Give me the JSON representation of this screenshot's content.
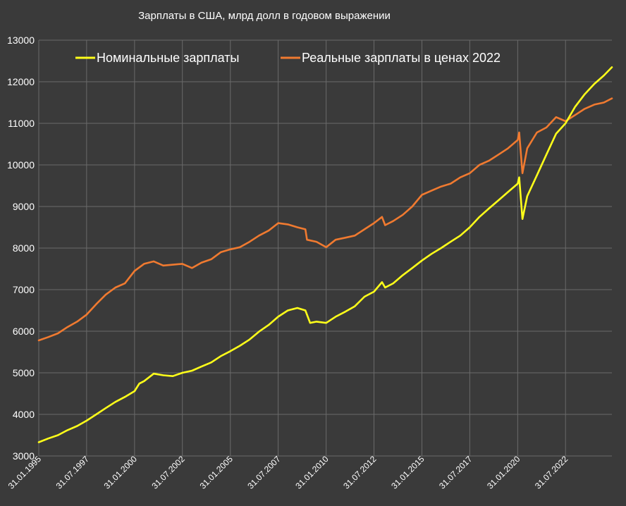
{
  "chart_data": {
    "type": "line",
    "title": "Зарплаты в США, млрд долл в годовом выражении",
    "xlabel": "",
    "ylabel": "",
    "ylim": [
      3000,
      13000
    ],
    "yticks": [
      "3000",
      "4000",
      "5000",
      "6000",
      "7000",
      "8000",
      "9000",
      "10000",
      "11000",
      "12000",
      "13000"
    ],
    "xlim": [
      "1995-01-31",
      "2024-12-31"
    ],
    "xticks": [
      {
        "date": "1995-01-31",
        "label": "31.01.1995"
      },
      {
        "date": "1997-07-31",
        "label": "31.07.1997"
      },
      {
        "date": "2000-01-31",
        "label": "31.01.2000"
      },
      {
        "date": "2002-07-31",
        "label": "31.07.2002"
      },
      {
        "date": "2005-01-31",
        "label": "31.01.2005"
      },
      {
        "date": "2007-07-31",
        "label": "31.07.2007"
      },
      {
        "date": "2010-01-31",
        "label": "31.01.2010"
      },
      {
        "date": "2012-07-31",
        "label": "31.07.2012"
      },
      {
        "date": "2015-01-31",
        "label": "31.01.2015"
      },
      {
        "date": "2017-07-31",
        "label": "31.07.2017"
      },
      {
        "date": "2020-01-31",
        "label": "31.01.2020"
      },
      {
        "date": "2022-07-31",
        "label": "31.07.2022"
      }
    ],
    "grid": true,
    "legend_position": "top-left",
    "series": [
      {
        "name": "Номинальные зарплаты",
        "color": "#ffff1a",
        "points": [
          [
            "1995-01-31",
            3330
          ],
          [
            "1995-07-31",
            3420
          ],
          [
            "1996-01-31",
            3500
          ],
          [
            "1996-07-31",
            3620
          ],
          [
            "1997-01-31",
            3720
          ],
          [
            "1997-07-31",
            3850
          ],
          [
            "1998-01-31",
            4000
          ],
          [
            "1998-07-31",
            4150
          ],
          [
            "1999-01-31",
            4300
          ],
          [
            "1999-07-31",
            4420
          ],
          [
            "2000-01-31",
            4560
          ],
          [
            "2000-04-30",
            4740
          ],
          [
            "2000-07-31",
            4800
          ],
          [
            "2001-01-31",
            4980
          ],
          [
            "2001-07-31",
            4940
          ],
          [
            "2002-01-31",
            4920
          ],
          [
            "2002-07-31",
            5000
          ],
          [
            "2003-01-31",
            5050
          ],
          [
            "2003-07-31",
            5150
          ],
          [
            "2004-01-31",
            5250
          ],
          [
            "2004-07-31",
            5400
          ],
          [
            "2005-01-31",
            5520
          ],
          [
            "2005-07-31",
            5650
          ],
          [
            "2006-01-31",
            5800
          ],
          [
            "2006-07-31",
            5990
          ],
          [
            "2007-01-31",
            6150
          ],
          [
            "2007-07-31",
            6350
          ],
          [
            "2008-01-31",
            6500
          ],
          [
            "2008-07-31",
            6560
          ],
          [
            "2008-12-31",
            6500
          ],
          [
            "2009-03-31",
            6200
          ],
          [
            "2009-07-31",
            6230
          ],
          [
            "2010-01-31",
            6200
          ],
          [
            "2010-07-31",
            6350
          ],
          [
            "2011-01-31",
            6470
          ],
          [
            "2011-07-31",
            6600
          ],
          [
            "2012-01-31",
            6830
          ],
          [
            "2012-07-31",
            6950
          ],
          [
            "2012-12-31",
            7180
          ],
          [
            "2013-02-28",
            7050
          ],
          [
            "2013-07-31",
            7150
          ],
          [
            "2014-01-31",
            7350
          ],
          [
            "2014-07-31",
            7520
          ],
          [
            "2015-01-31",
            7700
          ],
          [
            "2015-07-31",
            7860
          ],
          [
            "2016-01-31",
            8000
          ],
          [
            "2016-07-31",
            8150
          ],
          [
            "2017-01-31",
            8300
          ],
          [
            "2017-07-31",
            8500
          ],
          [
            "2018-01-31",
            8750
          ],
          [
            "2018-07-31",
            8950
          ],
          [
            "2019-01-31",
            9150
          ],
          [
            "2019-07-31",
            9350
          ],
          [
            "2020-01-31",
            9550
          ],
          [
            "2020-02-29",
            9700
          ],
          [
            "2020-04-30",
            8700
          ],
          [
            "2020-07-31",
            9250
          ],
          [
            "2021-01-31",
            9750
          ],
          [
            "2021-07-31",
            10250
          ],
          [
            "2022-01-31",
            10750
          ],
          [
            "2022-07-31",
            11000
          ],
          [
            "2023-01-31",
            11400
          ],
          [
            "2023-07-31",
            11700
          ],
          [
            "2024-01-31",
            11950
          ],
          [
            "2024-07-31",
            12150
          ],
          [
            "2024-12-31",
            12350
          ]
        ]
      },
      {
        "name": "Реальные зарплаты в ценах 2022",
        "color": "#f07a30",
        "points": [
          [
            "1995-01-31",
            5780
          ],
          [
            "1995-07-31",
            5860
          ],
          [
            "1996-01-31",
            5950
          ],
          [
            "1996-07-31",
            6100
          ],
          [
            "1997-01-31",
            6230
          ],
          [
            "1997-07-31",
            6400
          ],
          [
            "1998-01-31",
            6650
          ],
          [
            "1998-07-31",
            6880
          ],
          [
            "1999-01-31",
            7050
          ],
          [
            "1999-07-31",
            7150
          ],
          [
            "2000-01-31",
            7450
          ],
          [
            "2000-07-31",
            7620
          ],
          [
            "2001-01-31",
            7680
          ],
          [
            "2001-07-31",
            7580
          ],
          [
            "2002-01-31",
            7600
          ],
          [
            "2002-07-31",
            7620
          ],
          [
            "2003-01-31",
            7520
          ],
          [
            "2003-07-31",
            7650
          ],
          [
            "2004-01-31",
            7730
          ],
          [
            "2004-07-31",
            7900
          ],
          [
            "2005-01-31",
            7970
          ],
          [
            "2005-07-31",
            8020
          ],
          [
            "2006-01-31",
            8150
          ],
          [
            "2006-07-31",
            8300
          ],
          [
            "2007-01-31",
            8420
          ],
          [
            "2007-07-31",
            8600
          ],
          [
            "2008-01-31",
            8570
          ],
          [
            "2008-07-31",
            8500
          ],
          [
            "2008-12-31",
            8450
          ],
          [
            "2009-01-31",
            8200
          ],
          [
            "2009-07-31",
            8150
          ],
          [
            "2010-01-31",
            8020
          ],
          [
            "2010-07-31",
            8200
          ],
          [
            "2011-01-31",
            8250
          ],
          [
            "2011-07-31",
            8300
          ],
          [
            "2012-01-31",
            8450
          ],
          [
            "2012-07-31",
            8600
          ],
          [
            "2012-12-31",
            8750
          ],
          [
            "2013-02-28",
            8550
          ],
          [
            "2013-07-31",
            8650
          ],
          [
            "2014-01-31",
            8800
          ],
          [
            "2014-07-31",
            9000
          ],
          [
            "2015-01-31",
            9280
          ],
          [
            "2015-07-31",
            9380
          ],
          [
            "2016-01-31",
            9480
          ],
          [
            "2016-07-31",
            9550
          ],
          [
            "2017-01-31",
            9700
          ],
          [
            "2017-07-31",
            9800
          ],
          [
            "2018-01-31",
            10000
          ],
          [
            "2018-07-31",
            10100
          ],
          [
            "2019-01-31",
            10250
          ],
          [
            "2019-07-31",
            10400
          ],
          [
            "2020-01-31",
            10600
          ],
          [
            "2020-02-29",
            10780
          ],
          [
            "2020-04-30",
            9800
          ],
          [
            "2020-07-31",
            10400
          ],
          [
            "2021-01-31",
            10780
          ],
          [
            "2021-07-31",
            10900
          ],
          [
            "2022-01-31",
            11150
          ],
          [
            "2022-07-31",
            11050
          ],
          [
            "2023-01-31",
            11200
          ],
          [
            "2023-07-31",
            11350
          ],
          [
            "2024-01-31",
            11450
          ],
          [
            "2024-07-31",
            11500
          ],
          [
            "2024-12-31",
            11600
          ]
        ]
      }
    ]
  }
}
